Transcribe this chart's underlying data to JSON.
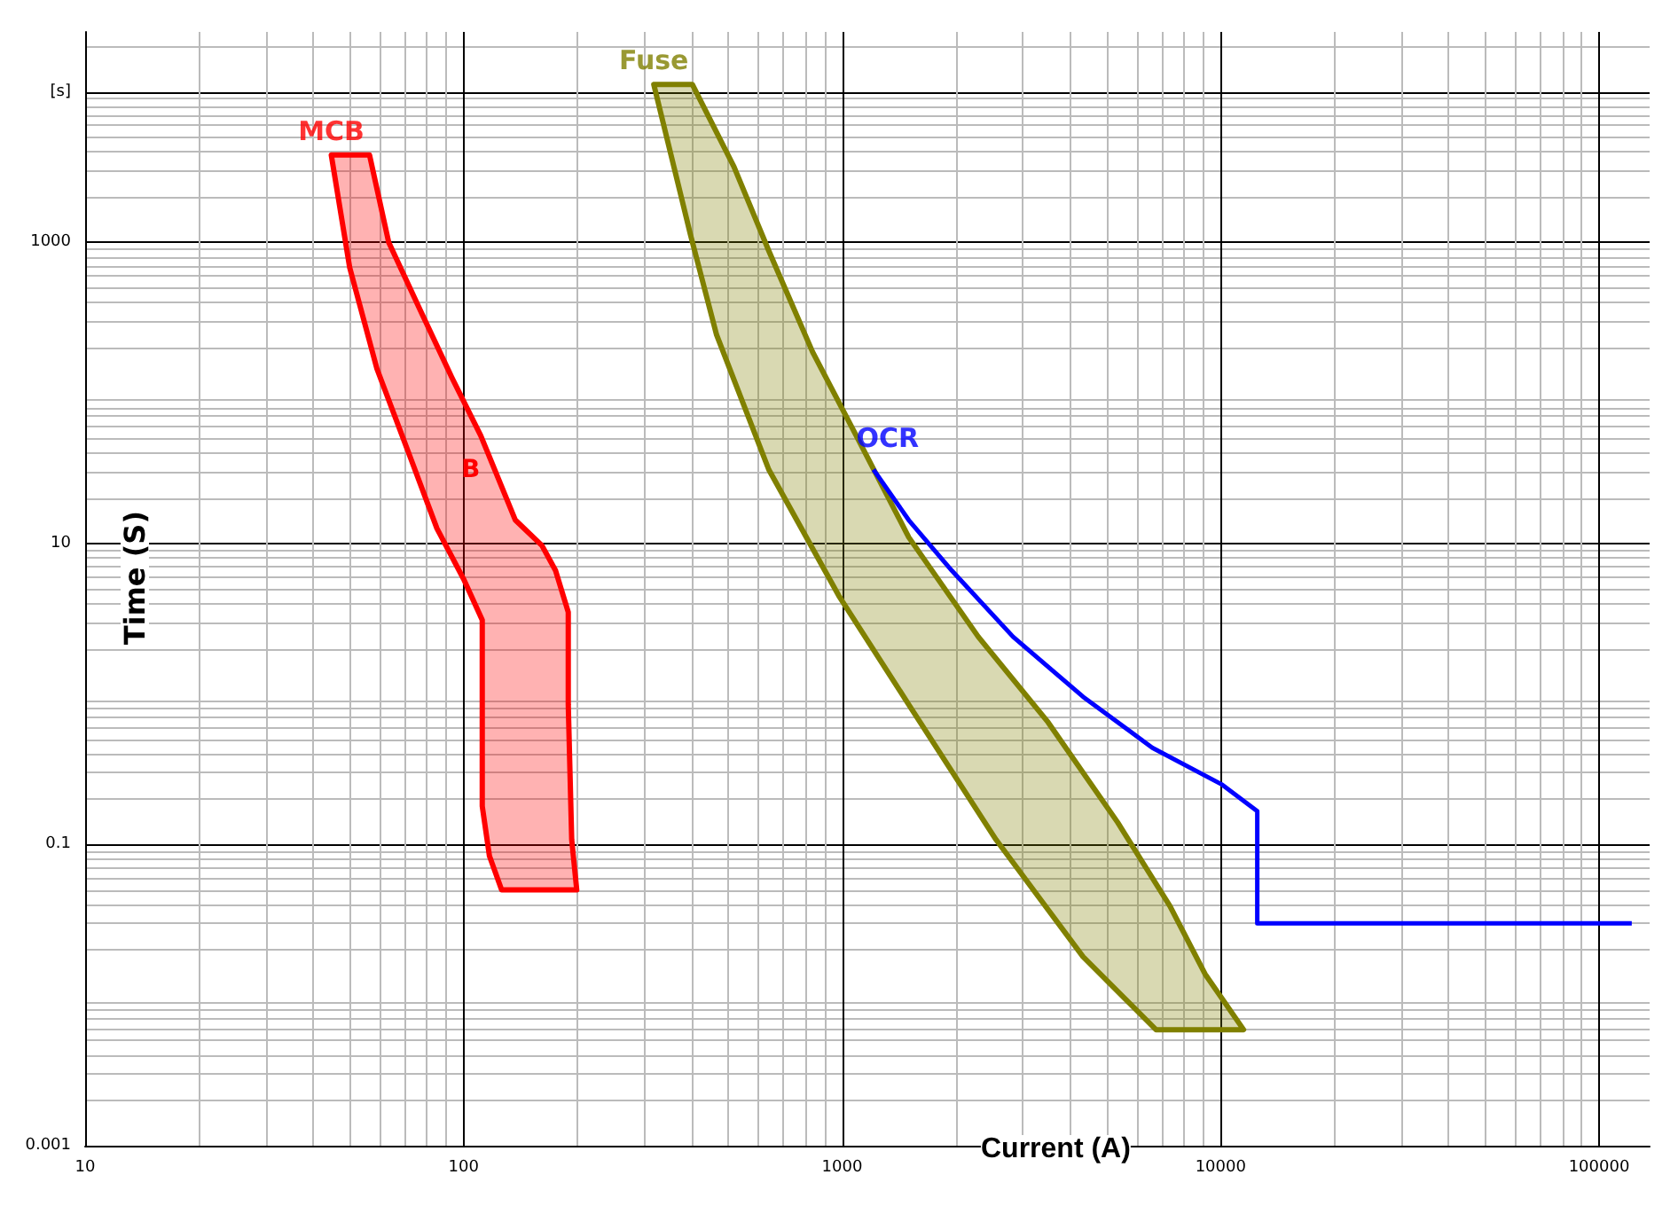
{
  "chart_data": {
    "type": "area",
    "xlabel": "Current (A)",
    "ylabel": "Time (S)",
    "log": "xy",
    "grid": true,
    "legend": false,
    "xlim": [
      10,
      136000
    ],
    "ylim": [
      0.001,
      25000
    ],
    "xticks": [
      10,
      100,
      1000,
      10000,
      100000
    ],
    "yticks": [
      0.001,
      0.1,
      10,
      1000,
      {
        "value": 10000,
        "label": "[s]"
      }
    ],
    "annotations": [
      "B"
    ],
    "series": [
      {
        "name": "MCB",
        "color": "#ff0000",
        "x": [
          44.7,
          56.4,
          63.4,
          76.7,
          92.9,
          111,
          137,
          161,
          175,
          189,
          189,
          193,
          199,
          126,
          117,
          112,
          112,
          100,
          85,
          73,
          59,
          50,
          44.7
        ],
        "values": [
          3810,
          3810,
          1000,
          357,
          128,
          52,
          14.3,
          9.7,
          6.6,
          3.5,
          0.85,
          0.108,
          0.05,
          0.05,
          0.084,
          0.18,
          3.1,
          5.8,
          12.6,
          35,
          145,
          680,
          3810
        ]
      },
      {
        "name": "Fuse",
        "color": "#808000",
        "x": [
          318,
          402,
          518,
          640,
          835,
          1090,
          1500,
          2290,
          3500,
          5350,
          7350,
          9100,
          11500,
          6750,
          4330,
          2550,
          1500,
          980,
          640,
          466,
          397,
          318
        ],
        "values": [
          11200,
          11200,
          3180,
          880,
          188,
          52,
          11,
          2.4,
          0.65,
          0.14,
          0.039,
          0.0138,
          0.0059,
          0.0059,
          0.018,
          0.108,
          0.85,
          4.5,
          31,
          243,
          1140,
          11200
        ]
      },
      {
        "name": "OCR",
        "type": "line",
        "color": "#0000ff",
        "x": [
          1210,
          1500,
          1950,
          2830,
          4330,
          6600,
          10100,
          12500,
          12500,
          122000
        ],
        "values": [
          31,
          14.3,
          6.6,
          2.4,
          0.96,
          0.44,
          0.25,
          0.167,
          0.03,
          0.03
        ]
      }
    ]
  }
}
